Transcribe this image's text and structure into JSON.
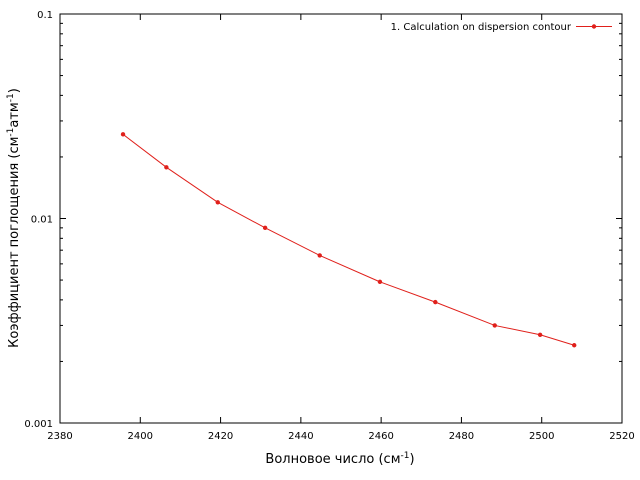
{
  "chart_data": {
    "type": "line",
    "scale_y": "log",
    "xlim": [
      2380,
      2520
    ],
    "ylim": [
      0.001,
      0.1
    ],
    "x_ticks": [
      2380,
      2400,
      2420,
      2440,
      2460,
      2480,
      2500,
      2520
    ],
    "x_tick_labels": [
      "2380",
      "2400",
      "2420",
      "2440",
      "2460",
      "2480",
      "2500",
      "2520"
    ],
    "y_ticks": [
      0.001,
      0.01,
      0.1
    ],
    "y_tick_labels": [
      "0.001",
      "0.01",
      "0.1"
    ],
    "xlabel": {
      "main": "Волновое число (см",
      "sup": "-1",
      "tail": ")"
    },
    "ylabel": {
      "main": "Коэффициент поглощения (см",
      "sup1": "-1",
      "mid": "атм",
      "sup2": "-1",
      "tail": ")"
    },
    "grid": false,
    "legend_position": "top-right",
    "series": [
      {
        "name": "1. Calculation on dispersion contour",
        "color": "#e0201b",
        "marker": "dot",
        "x": [
          2395.7,
          2406.5,
          2419.3,
          2431.1,
          2444.7,
          2459.7,
          2473.5,
          2488.3,
          2499.6,
          2508.1
        ],
        "y": [
          0.0258,
          0.0178,
          0.012,
          0.009,
          0.0066,
          0.0049,
          0.0039,
          0.003,
          0.0027,
          0.0024
        ]
      }
    ]
  }
}
